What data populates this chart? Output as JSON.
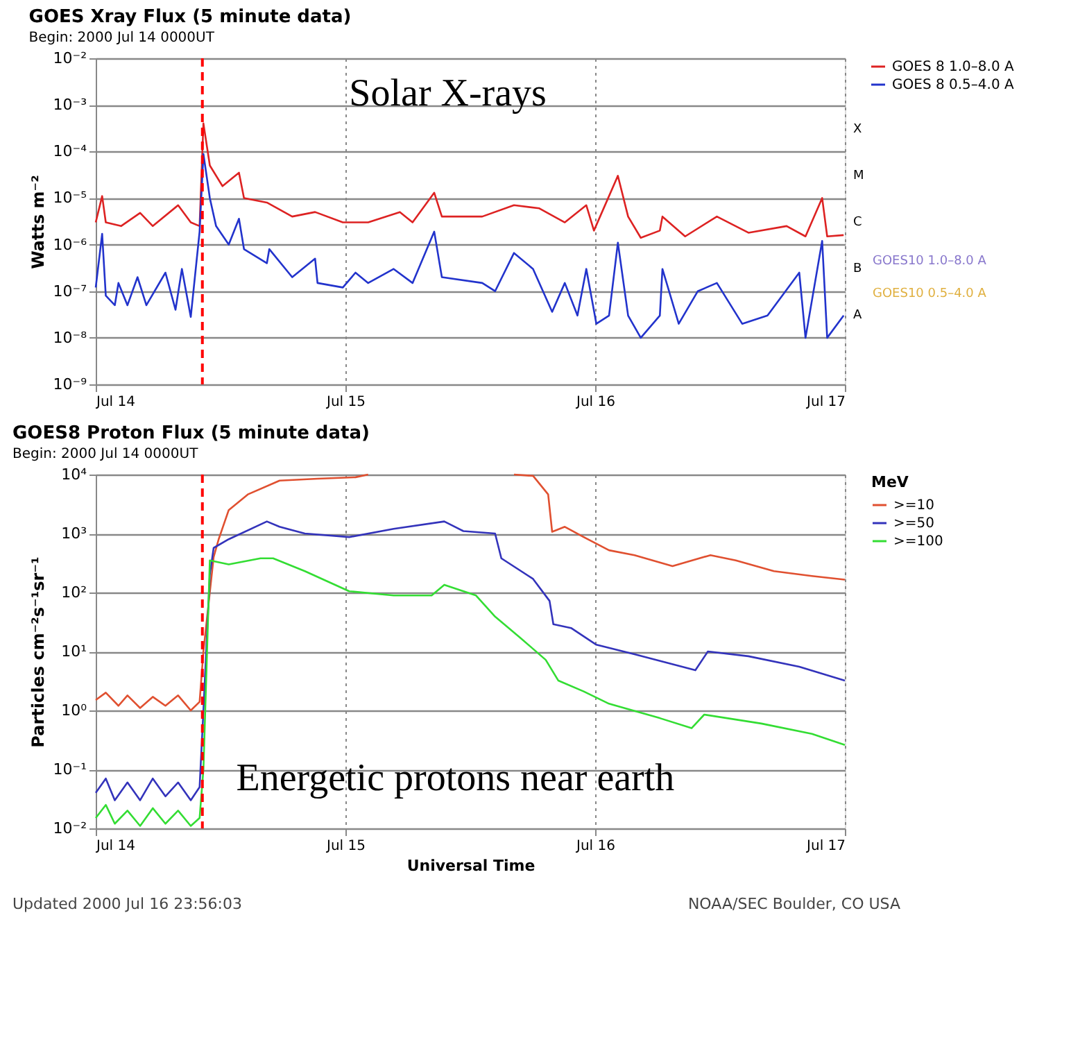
{
  "chart_data": [
    {
      "type": "line",
      "title": "GOES Xray Flux (5 minute data)",
      "subtitle": "Begin: 2000 Jul 14 0000UT",
      "ylabel": "Watts m⁻²",
      "xlim": [
        "2000-07-14T00:00",
        "2000-07-17T00:00"
      ],
      "xticks": [
        {
          "value": "2000-07-14T00:00",
          "label": "Jul 14"
        },
        {
          "value": "2000-07-15T00:00",
          "label": "Jul 15"
        },
        {
          "value": "2000-07-16T00:00",
          "label": "Jul 16"
        },
        {
          "value": "2000-07-17T00:00",
          "label": "Jul 17"
        }
      ],
      "ylim": [
        1e-09,
        0.01
      ],
      "yticks": [
        {
          "value": 1e-09,
          "label": "10⁻⁹"
        },
        {
          "value": 1e-08,
          "label": "10⁻⁸"
        },
        {
          "value": 1e-07,
          "label": "10⁻⁷"
        },
        {
          "value": 1e-06,
          "label": "10⁻⁶"
        },
        {
          "value": 1e-05,
          "label": "10⁻⁵"
        },
        {
          "value": 0.0001,
          "label": "10⁻⁴"
        },
        {
          "value": 0.001,
          "label": "10⁻³"
        },
        {
          "value": 0.01,
          "label": "10⁻²"
        }
      ],
      "log": true,
      "grid": true,
      "legend": "right",
      "series": [
        {
          "name": "GOES 8 1.0–8.0 A",
          "color": "#dd2222",
          "x": [
            "2000-07-14T00:00",
            "2000-07-14T00:37",
            "2000-07-14T00:58",
            "2000-07-14T02:26",
            "2000-07-14T04:16",
            "2000-07-14T05:29",
            "2000-07-14T07:55",
            "2000-07-14T09:08",
            "2000-07-14T09:59",
            "2000-07-14T10:21",
            "2000-07-14T10:58",
            "2000-07-14T12:11",
            "2000-07-14T13:46",
            "2000-07-14T14:15",
            "2000-07-14T16:27",
            "2000-07-14T18:53",
            "2000-07-14T21:05",
            "2000-07-14T23:45",
            "2000-07-15T02:11",
            "2000-07-15T05:14",
            "2000-07-15T06:27",
            "2000-07-15T08:32",
            "2000-07-15T09:16",
            "2000-07-15T13:09",
            "2000-07-15T16:12",
            "2000-07-15T18:38",
            "2000-07-15T21:05",
            "2000-07-15T23:09",
            "2000-07-15T23:53",
            "2000-07-16T02:11",
            "2000-07-16T03:10",
            "2000-07-16T04:23",
            "2000-07-16T06:13",
            "2000-07-16T06:28",
            "2000-07-16T08:39",
            "2000-07-16T11:42",
            "2000-07-16T14:44",
            "2000-07-16T18:24",
            "2000-07-16T20:13",
            "2000-07-16T21:49",
            "2000-07-16T22:18",
            "2000-07-16T23:53"
          ],
          "values": [
            3e-06,
            1.1e-05,
            3e-06,
            2.5e-06,
            4.8e-06,
            2.5e-06,
            7e-06,
            3e-06,
            2.5e-06,
            0.0004,
            5e-05,
            1.8e-05,
            3.5e-05,
            1e-05,
            8e-06,
            4e-06,
            5e-06,
            3e-06,
            3e-06,
            5e-06,
            3e-06,
            1.3e-05,
            4e-06,
            4e-06,
            7e-06,
            6e-06,
            3e-06,
            7e-06,
            2e-06,
            3e-05,
            4e-06,
            1.4e-06,
            2e-06,
            4e-06,
            1.5e-06,
            4e-06,
            1.8e-06,
            2.5e-06,
            1.5e-06,
            1e-05,
            1.5e-06,
            1.6e-06
          ]
        },
        {
          "name": "GOES 8 0.5–4.0 A",
          "color": "#2233cc",
          "x": [
            "2000-07-14T00:00",
            "2000-07-14T00:37",
            "2000-07-14T00:58",
            "2000-07-14T01:50",
            "2000-07-14T02:11",
            "2000-07-14T03:03",
            "2000-07-14T04:01",
            "2000-07-14T04:52",
            "2000-07-14T06:42",
            "2000-07-14T07:40",
            "2000-07-14T08:17",
            "2000-07-14T09:08",
            "2000-07-14T09:59",
            "2000-07-14T10:21",
            "2000-07-14T10:58",
            "2000-07-14T11:34",
            "2000-07-14T12:47",
            "2000-07-14T13:46",
            "2000-07-14T14:15",
            "2000-07-14T16:27",
            "2000-07-14T16:41",
            "2000-07-14T18:53",
            "2000-07-14T21:05",
            "2000-07-14T21:19",
            "2000-07-14T23:45",
            "2000-07-15T00:58",
            "2000-07-15T02:11",
            "2000-07-15T04:38",
            "2000-07-15T06:27",
            "2000-07-15T08:32",
            "2000-07-15T09:16",
            "2000-07-15T13:09",
            "2000-07-15T14:23",
            "2000-07-15T16:12",
            "2000-07-15T18:02",
            "2000-07-15T19:52",
            "2000-07-15T21:05",
            "2000-07-15T22:18",
            "2000-07-15T23:09",
            "2000-07-16T00:07",
            "2000-07-16T01:20",
            "2000-07-16T02:11",
            "2000-07-16T03:10",
            "2000-07-16T04:23",
            "2000-07-16T06:13",
            "2000-07-16T06:28",
            "2000-07-16T08:02",
            "2000-07-16T09:52",
            "2000-07-16T11:42",
            "2000-07-16T14:08",
            "2000-07-16T16:34",
            "2000-07-16T19:37",
            "2000-07-16T20:13",
            "2000-07-16T21:49",
            "2000-07-16T22:18",
            "2000-07-16T23:53"
          ],
          "values": [
            1.2e-07,
            1.7e-06,
            8e-08,
            5e-08,
            1.5e-07,
            5e-08,
            2e-07,
            5e-08,
            2.5e-07,
            4e-08,
            3e-07,
            2.8e-08,
            1.9e-06,
            8.8e-05,
            1e-05,
            2.5e-06,
            1e-06,
            3.6e-06,
            8e-07,
            4e-07,
            8e-07,
            2e-07,
            5e-07,
            1.5e-07,
            1.2e-07,
            2.5e-07,
            1.5e-07,
            3e-07,
            1.5e-07,
            1.9e-06,
            2e-07,
            1.5e-07,
            1e-07,
            6.6e-07,
            3e-07,
            3.6e-08,
            1.5e-07,
            3e-08,
            3e-07,
            2e-08,
            3e-08,
            1.1e-06,
            3e-08,
            1e-08,
            3e-08,
            3e-07,
            2e-08,
            1e-07,
            1.5e-07,
            2e-08,
            3e-08,
            2.5e-07,
            1e-08,
            1.2e-06,
            1e-08,
            3e-08
          ]
        }
      ],
      "ref_lines": [
        {
          "axis": "x",
          "value": "2000-07-14T10:15",
          "color": "#ff0000",
          "line_style": "dashed"
        }
      ],
      "annotations": [
        "Solar X-rays",
        "GOES10 1.0–8.0 A",
        "GOES10 0.5–4.0 A",
        "A",
        "B",
        "C",
        "M",
        "X"
      ]
    },
    {
      "type": "line",
      "title": "GOES8 Proton Flux (5 minute data)",
      "subtitle": "Begin: 2000 Jul 14 0000UT",
      "xlabel": "Universal Time",
      "ylabel": "Particles cm⁻²s⁻¹sr⁻¹",
      "legend_title": "MeV",
      "xlim": [
        "2000-07-14T00:00",
        "2000-07-17T00:00"
      ],
      "xticks": [
        {
          "value": "2000-07-14T00:00",
          "label": "Jul 14"
        },
        {
          "value": "2000-07-15T00:00",
          "label": "Jul 15"
        },
        {
          "value": "2000-07-16T00:00",
          "label": "Jul 16"
        },
        {
          "value": "2000-07-17T00:00",
          "label": "Jul 17"
        }
      ],
      "ylim": [
        0.01,
        10000
      ],
      "yticks": [
        {
          "value": 0.01,
          "label": "10⁻²"
        },
        {
          "value": 0.1,
          "label": "10⁻¹"
        },
        {
          "value": 1,
          "label": "10⁰"
        },
        {
          "value": 10,
          "label": "10¹"
        },
        {
          "value": 100,
          "label": "10²"
        },
        {
          "value": 1000,
          "label": "10³"
        },
        {
          "value": 10000,
          "label": "10⁴"
        }
      ],
      "log": true,
      "grid": true,
      "legend": "right",
      "series": [
        {
          "name": ">=10",
          "color": "#e05030",
          "x": [
            "2000-07-14T00:00",
            "2000-07-14T00:58",
            "2000-07-14T02:11",
            "2000-07-14T03:03",
            "2000-07-14T04:16",
            "2000-07-14T05:29",
            "2000-07-14T06:42",
            "2000-07-14T07:55",
            "2000-07-14T09:08",
            "2000-07-14T09:59",
            "2000-07-14T10:21",
            "2000-07-14T11:20",
            "2000-07-14T11:49",
            "2000-07-14T12:47",
            "2000-07-14T14:37",
            "2000-07-14T17:40",
            "2000-07-14T21:19",
            "2000-07-15T00:58",
            "2000-07-15T02:11",
            "2000-07-15T09:30",
            "2000-07-15T16:12",
            "2000-07-15T18:02",
            "2000-07-15T19:29",
            "2000-07-15T19:52",
            "2000-07-15T21:05",
            "2000-07-15T22:54",
            "2000-07-16T01:20",
            "2000-07-16T03:47",
            "2000-07-16T07:26",
            "2000-07-16T11:05",
            "2000-07-16T13:31",
            "2000-07-16T17:11",
            "2000-07-16T20:50",
            "2000-07-17T00:00"
          ],
          "values": [
            1.5,
            2,
            1.2,
            1.8,
            1.1,
            1.7,
            1.2,
            1.8,
            1.0,
            1.4,
            10,
            400,
            800,
            2500,
            4600,
            7900,
            8500,
            9000,
            10000,
            null,
            10000,
            9500,
            4600,
            1070,
            1300,
            870,
            520,
            430,
            280,
            430,
            350,
            230,
            190,
            165
          ]
        },
        {
          "name": ">=50",
          "color": "#3333bb",
          "x": [
            "2000-07-14T00:00",
            "2000-07-14T00:58",
            "2000-07-14T01:50",
            "2000-07-14T03:03",
            "2000-07-14T04:16",
            "2000-07-14T05:29",
            "2000-07-14T06:42",
            "2000-07-14T07:55",
            "2000-07-14T09:08",
            "2000-07-14T09:59",
            "2000-07-14T10:21",
            "2000-07-14T10:58",
            "2000-07-14T11:20",
            "2000-07-14T12:47",
            "2000-07-14T16:27",
            "2000-07-14T17:40",
            "2000-07-14T20:06",
            "2000-07-15T00:22",
            "2000-07-15T04:38",
            "2000-07-15T09:30",
            "2000-07-15T11:20",
            "2000-07-15T14:23",
            "2000-07-15T14:59",
            "2000-07-15T18:02",
            "2000-07-15T19:37",
            "2000-07-15T19:59",
            "2000-07-15T21:41",
            "2000-07-16T00:07",
            "2000-07-16T03:47",
            "2000-07-16T09:38",
            "2000-07-16T10:50",
            "2000-07-16T14:44",
            "2000-07-16T19:37",
            "2000-07-17T00:00"
          ],
          "values": [
            0.04,
            0.07,
            0.03,
            0.06,
            0.03,
            0.07,
            0.035,
            0.06,
            0.03,
            0.05,
            1,
            200,
            570,
            800,
            1600,
            1300,
            1000,
            870,
            1200,
            1600,
            1100,
            1000,
            380,
            170,
            72,
            29,
            25,
            13,
            9,
            4.8,
            10,
            8.3,
            5.5,
            3.2
          ]
        },
        {
          "name": ">=100",
          "color": "#33dd33",
          "x": [
            "2000-07-14T00:00",
            "2000-07-14T00:58",
            "2000-07-14T01:50",
            "2000-07-14T03:03",
            "2000-07-14T04:16",
            "2000-07-14T05:29",
            "2000-07-14T06:42",
            "2000-07-14T07:55",
            "2000-07-14T09:08",
            "2000-07-14T09:59",
            "2000-07-14T10:21",
            "2000-07-14T10:58",
            "2000-07-14T12:47",
            "2000-07-14T15:50",
            "2000-07-14T17:03",
            "2000-07-14T20:06",
            "2000-07-15T00:22",
            "2000-07-15T04:38",
            "2000-07-15T08:17",
            "2000-07-15T09:30",
            "2000-07-15T12:33",
            "2000-07-15T14:23",
            "2000-07-15T16:49",
            "2000-07-15T19:15",
            "2000-07-15T20:28",
            "2000-07-15T22:54",
            "2000-07-16T01:20",
            "2000-07-16T06:13",
            "2000-07-16T09:16",
            "2000-07-16T10:29",
            "2000-07-16T15:58",
            "2000-07-16T20:50",
            "2000-07-17T00:00"
          ],
          "values": [
            0.015,
            0.025,
            0.012,
            0.02,
            0.011,
            0.022,
            0.012,
            0.02,
            0.011,
            0.015,
            0.1,
            350,
            300,
            380,
            380,
            230,
            105,
            89,
            89,
            135,
            89,
            39,
            17,
            7.2,
            3.2,
            2.1,
            1.3,
            0.74,
            0.5,
            0.85,
            0.6,
            0.4,
            0.26
          ]
        }
      ],
      "ref_lines": [
        {
          "axis": "x",
          "value": "2000-07-14T10:15",
          "color": "#ff0000",
          "line_style": "dashed"
        }
      ],
      "annotations": [
        "Energetic protons near earth",
        "Updated 2000 Jul 16 23:56:03",
        "NOAA/SEC Boulder, CO USA"
      ]
    }
  ]
}
